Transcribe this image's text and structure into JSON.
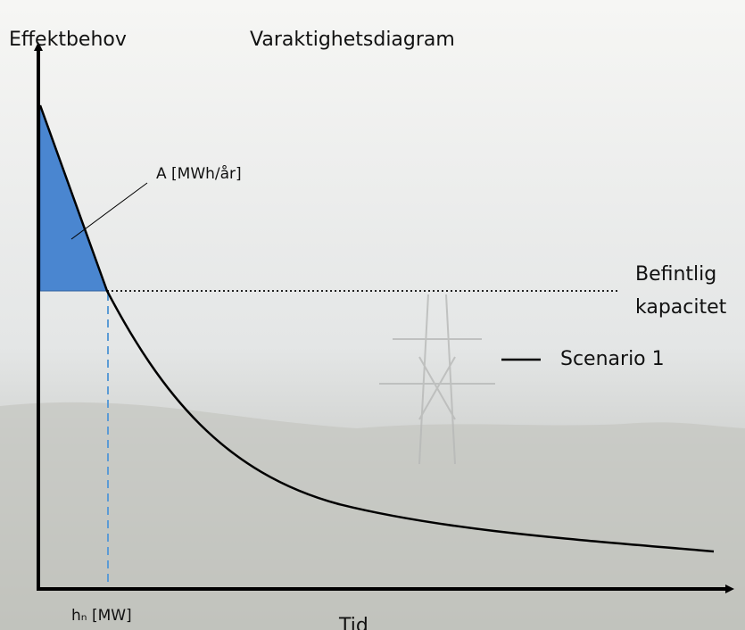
{
  "title": "Varaktighetsdiagram",
  "y_axis_label": "Effektbehov",
  "x_axis_label": "Tid",
  "area_label": "A [MWh/år]",
  "capacity_label": [
    "Befintlig",
    "kapacitet"
  ],
  "legend": "Scenario 1",
  "hours_label": "hₙ [MW]"
}
